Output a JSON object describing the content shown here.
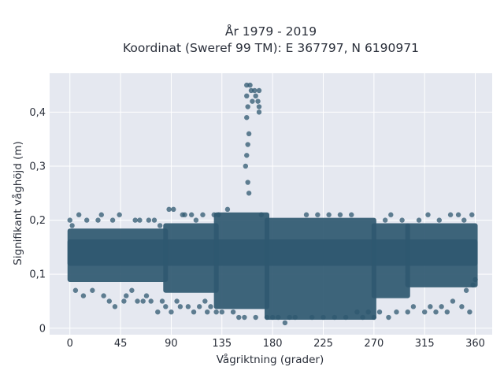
{
  "chart_data": {
    "type": "scatter",
    "title_line1": "År 1979 - 2019",
    "title_line2": "Koordinat (Sweref 99 TM): E 367797, N 6190971",
    "xlabel": "Vågriktning (grader)",
    "ylabel": "Signifikant våghöjd (m)",
    "xlim": [
      -18,
      375
    ],
    "ylim": [
      -0.012,
      0.472
    ],
    "x_ticks": [
      0,
      45,
      90,
      135,
      180,
      225,
      270,
      315,
      360
    ],
    "x_tick_labels": [
      "0",
      "45",
      "90",
      "135",
      "180",
      "225",
      "270",
      "315",
      "360"
    ],
    "y_ticks": [
      0,
      0.1,
      0.2,
      0.3,
      0.4
    ],
    "y_tick_labels": [
      "0",
      "0,1",
      "0,2",
      "0,3",
      "0,4"
    ],
    "grid": true,
    "marker_color": "#2f5870",
    "background_color": "#e5e8f0",
    "series": [
      {
        "description_values": "dense point cloud of wave height vs direction, 1979-2019",
        "points": [
          [
            0,
            0.2
          ],
          [
            2,
            0.19
          ],
          [
            5,
            0.07
          ],
          [
            8,
            0.21
          ],
          [
            12,
            0.06
          ],
          [
            15,
            0.2
          ],
          [
            20,
            0.07
          ],
          [
            25,
            0.2
          ],
          [
            28,
            0.21
          ],
          [
            30,
            0.06
          ],
          [
            35,
            0.05
          ],
          [
            38,
            0.2
          ],
          [
            40,
            0.04
          ],
          [
            44,
            0.21
          ],
          [
            48,
            0.05
          ],
          [
            50,
            0.06
          ],
          [
            55,
            0.07
          ],
          [
            58,
            0.2
          ],
          [
            60,
            0.05
          ],
          [
            62,
            0.2
          ],
          [
            65,
            0.05
          ],
          [
            68,
            0.06
          ],
          [
            70,
            0.2
          ],
          [
            72,
            0.05
          ],
          [
            75,
            0.2
          ],
          [
            78,
            0.03
          ],
          [
            80,
            0.19
          ],
          [
            82,
            0.05
          ],
          [
            85,
            0.04
          ],
          [
            88,
            0.22
          ],
          [
            90,
            0.03
          ],
          [
            92,
            0.22
          ],
          [
            95,
            0.05
          ],
          [
            98,
            0.04
          ],
          [
            100,
            0.21
          ],
          [
            102,
            0.21
          ],
          [
            105,
            0.04
          ],
          [
            108,
            0.21
          ],
          [
            110,
            0.03
          ],
          [
            112,
            0.2
          ],
          [
            115,
            0.04
          ],
          [
            118,
            0.21
          ],
          [
            120,
            0.05
          ],
          [
            122,
            0.03
          ],
          [
            125,
            0.04
          ],
          [
            128,
            0.21
          ],
          [
            130,
            0.03
          ],
          [
            132,
            0.21
          ],
          [
            135,
            0.03
          ],
          [
            140,
            0.22
          ],
          [
            145,
            0.03
          ],
          [
            150,
            0.02
          ],
          [
            155,
            0.02
          ],
          [
            157,
            0.45
          ],
          [
            160,
            0.45
          ],
          [
            157,
            0.43
          ],
          [
            158,
            0.41
          ],
          [
            157,
            0.39
          ],
          [
            159,
            0.36
          ],
          [
            158,
            0.34
          ],
          [
            157,
            0.32
          ],
          [
            156,
            0.3
          ],
          [
            158,
            0.27
          ],
          [
            159,
            0.25
          ],
          [
            161,
            0.44
          ],
          [
            162,
            0.42
          ],
          [
            164,
            0.44
          ],
          [
            165,
            0.43
          ],
          [
            167,
            0.42
          ],
          [
            168,
            0.41
          ],
          [
            168,
            0.4
          ],
          [
            168,
            0.44
          ],
          [
            165,
            0.02
          ],
          [
            170,
            0.21
          ],
          [
            175,
            0.02
          ],
          [
            180,
            0.02
          ],
          [
            185,
            0.02
          ],
          [
            191,
            0.01
          ],
          [
            195,
            0.02
          ],
          [
            200,
            0.02
          ],
          [
            210,
            0.21
          ],
          [
            215,
            0.02
          ],
          [
            220,
            0.21
          ],
          [
            225,
            0.02
          ],
          [
            230,
            0.21
          ],
          [
            235,
            0.02
          ],
          [
            240,
            0.21
          ],
          [
            245,
            0.02
          ],
          [
            250,
            0.21
          ],
          [
            255,
            0.03
          ],
          [
            260,
            0.02
          ],
          [
            265,
            0.03
          ],
          [
            270,
            0.02
          ],
          [
            275,
            0.03
          ],
          [
            280,
            0.2
          ],
          [
            283,
            0.02
          ],
          [
            285,
            0.21
          ],
          [
            290,
            0.03
          ],
          [
            295,
            0.2
          ],
          [
            300,
            0.03
          ],
          [
            305,
            0.04
          ],
          [
            310,
            0.2
          ],
          [
            315,
            0.03
          ],
          [
            318,
            0.21
          ],
          [
            320,
            0.04
          ],
          [
            325,
            0.03
          ],
          [
            328,
            0.2
          ],
          [
            330,
            0.04
          ],
          [
            335,
            0.03
          ],
          [
            338,
            0.21
          ],
          [
            340,
            0.05
          ],
          [
            345,
            0.21
          ],
          [
            348,
            0.04
          ],
          [
            350,
            0.2
          ],
          [
            352,
            0.07
          ],
          [
            355,
            0.03
          ],
          [
            357,
            0.21
          ],
          [
            358,
            0.08
          ],
          [
            360,
            0.09
          ]
        ]
      }
    ]
  }
}
